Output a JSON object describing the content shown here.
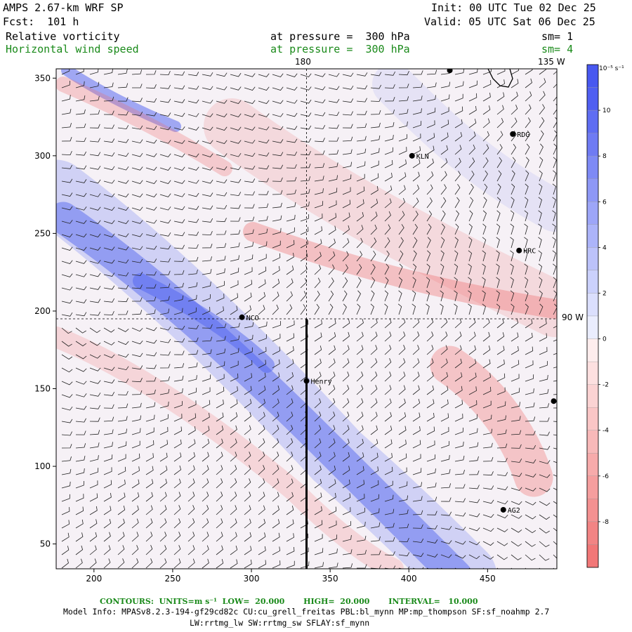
{
  "header": {
    "title": "AMPS 2.67-km WRF SP",
    "fcst": "Fcst:  101 h",
    "init": "Init: 00 UTC Tue 02 Dec 25",
    "valid": "Valid: 05 UTC Sat 06 Dec 25",
    "field1_name": "Relative vorticity",
    "field1_level": "at pressure =  300 hPa",
    "field1_sm": "sm= 1",
    "field2_name": "Horizontal wind speed",
    "field2_level": "at pressure =  300 hPa",
    "field2_sm": "sm= 4"
  },
  "map": {
    "longitude_labels": [
      "180",
      "135 W",
      "90 W"
    ],
    "x_ticks": [
      200,
      250,
      300,
      350,
      400,
      450
    ],
    "y_ticks": [
      50,
      100,
      150,
      200,
      250,
      300,
      350
    ],
    "x_range": [
      176,
      494
    ],
    "y_range": [
      34,
      356
    ],
    "crosshair": {
      "x": 335,
      "y": 195
    },
    "cross_section_line": {
      "x": 335,
      "y_from": 34,
      "y_to": 195
    },
    "stations": [
      {
        "name": "RDG",
        "x": 466,
        "y": 314
      },
      {
        "name": "KLN",
        "x": 402,
        "y": 300
      },
      {
        "name": "HRC",
        "x": 470,
        "y": 239
      },
      {
        "name": "NCO",
        "x": 294,
        "y": 196
      },
      {
        "name": "Henry",
        "x": 335,
        "y": 155
      },
      {
        "name": "AG2",
        "x": 460,
        "y": 72
      },
      {
        "name": "",
        "x": 492,
        "y": 142
      },
      {
        "name": "",
        "x": 426,
        "y": 355
      }
    ],
    "colors": {
      "positive": "#4a5ef0",
      "negative": "#f07070",
      "neutral": "#ffffff"
    }
  },
  "colorbar": {
    "unit_label": "10⁻⁵ s⁻¹",
    "ticks": [
      "10",
      "8",
      "6",
      "4",
      "2",
      "0",
      "-2",
      "-4",
      "-6",
      "-8"
    ],
    "range": [
      -10,
      12
    ]
  },
  "footer": {
    "contours": "CONTOURS:  UNITS=m s⁻¹  LOW=  20.000       HIGH=  20.000       INTERVAL=   10.000",
    "model_info": "Model Info: MPASv8.2.3-194-gf29cd82c CU:cu_grell_freitas PBL:bl_mynn MP:mp_thompson SF:sf_noahmp 2.7",
    "model_info2": "LW:rrtmg_lw SW:rrtmg_sw SFLAY:sf_mynn"
  }
}
